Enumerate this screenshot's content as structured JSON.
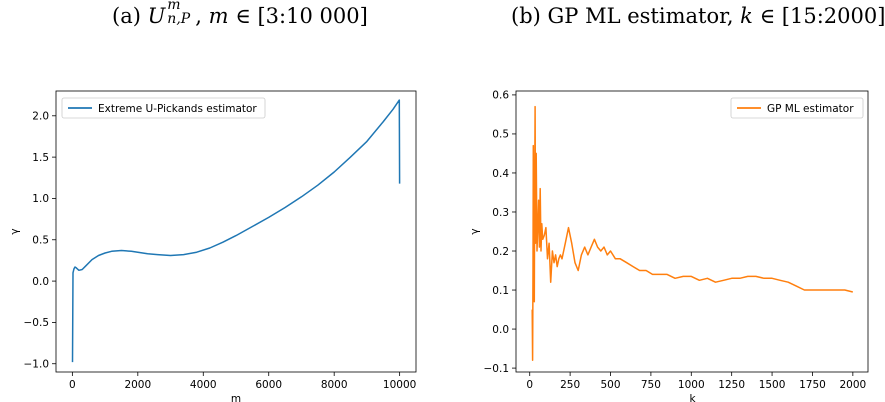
{
  "captions": {
    "left": {
      "prefix": "(a) ",
      "symbol": "U",
      "superscript": "m",
      "subscript": "n,P",
      "rest_pre": ", ",
      "var": "m",
      "rest_post": " ∈ [3:10 000]"
    },
    "right": {
      "prefix": "(b) GP ML estimator, ",
      "var": "k",
      "rest_post": " ∈ [15:2000]"
    }
  },
  "chart_data": [
    {
      "type": "line",
      "title": "",
      "xlabel": "m",
      "ylabel": "γ",
      "xlim": [
        -500,
        10500
      ],
      "ylim": [
        -1.1,
        2.3
      ],
      "xticks": [
        0,
        2000,
        4000,
        6000,
        8000,
        10000
      ],
      "yticks": [
        -1.0,
        -0.5,
        0.0,
        0.5,
        1.0,
        1.5,
        2.0
      ],
      "grid": false,
      "legend": "upper-left",
      "series": [
        {
          "name": "Extreme U-Pickands estimator",
          "color": "#1f77b4",
          "x": [
            3,
            20,
            50,
            80,
            120,
            200,
            300,
            400,
            600,
            800,
            1000,
            1200,
            1500,
            1800,
            2000,
            2300,
            2600,
            3000,
            3400,
            3800,
            4200,
            4600,
            5000,
            5500,
            6000,
            6500,
            7000,
            7500,
            8000,
            8500,
            9000,
            9500,
            9800,
            9990,
            10000
          ],
          "values": [
            -0.98,
            0.1,
            0.15,
            0.17,
            0.16,
            0.13,
            0.14,
            0.18,
            0.26,
            0.31,
            0.34,
            0.36,
            0.37,
            0.36,
            0.35,
            0.33,
            0.32,
            0.31,
            0.32,
            0.35,
            0.4,
            0.47,
            0.55,
            0.66,
            0.77,
            0.89,
            1.02,
            1.16,
            1.32,
            1.5,
            1.69,
            1.93,
            2.08,
            2.19,
            1.18
          ]
        }
      ]
    },
    {
      "type": "line",
      "title": "",
      "xlabel": "k",
      "ylabel": "γ",
      "xlim": [
        -85,
        2100
      ],
      "ylim": [
        -0.11,
        0.61
      ],
      "xticks": [
        0,
        250,
        500,
        750,
        1000,
        1250,
        1500,
        1750,
        2000
      ],
      "yticks": [
        -0.1,
        0.0,
        0.1,
        0.2,
        0.3,
        0.4,
        0.5,
        0.6
      ],
      "grid": false,
      "legend": "upper-right",
      "series": [
        {
          "name": "GP ML estimator",
          "color": "#ff7f0e",
          "x": [
            15,
            18,
            20,
            22,
            24,
            26,
            28,
            30,
            33,
            36,
            40,
            45,
            50,
            55,
            60,
            65,
            70,
            75,
            80,
            90,
            100,
            110,
            120,
            130,
            140,
            150,
            160,
            170,
            180,
            190,
            200,
            220,
            240,
            260,
            280,
            300,
            320,
            340,
            360,
            380,
            400,
            420,
            440,
            460,
            480,
            500,
            530,
            560,
            600,
            640,
            680,
            720,
            760,
            800,
            850,
            900,
            950,
            1000,
            1050,
            1100,
            1150,
            1200,
            1250,
            1300,
            1350,
            1400,
            1450,
            1500,
            1550,
            1600,
            1650,
            1700,
            1750,
            1800,
            1850,
            1900,
            1950,
            2000
          ],
          "values": [
            0.05,
            -0.08,
            0.15,
            0.47,
            0.2,
            0.42,
            0.07,
            0.3,
            0.57,
            0.22,
            0.45,
            0.2,
            0.26,
            0.33,
            0.21,
            0.36,
            0.2,
            0.27,
            0.23,
            0.24,
            0.26,
            0.18,
            0.22,
            0.12,
            0.2,
            0.17,
            0.19,
            0.16,
            0.18,
            0.19,
            0.18,
            0.22,
            0.26,
            0.22,
            0.17,
            0.15,
            0.19,
            0.21,
            0.19,
            0.21,
            0.23,
            0.21,
            0.2,
            0.21,
            0.19,
            0.2,
            0.18,
            0.18,
            0.17,
            0.16,
            0.15,
            0.15,
            0.14,
            0.14,
            0.14,
            0.13,
            0.135,
            0.135,
            0.125,
            0.13,
            0.12,
            0.125,
            0.13,
            0.13,
            0.135,
            0.135,
            0.13,
            0.13,
            0.125,
            0.12,
            0.11,
            0.1,
            0.1,
            0.1,
            0.1,
            0.1,
            0.1,
            0.095
          ]
        }
      ]
    }
  ]
}
